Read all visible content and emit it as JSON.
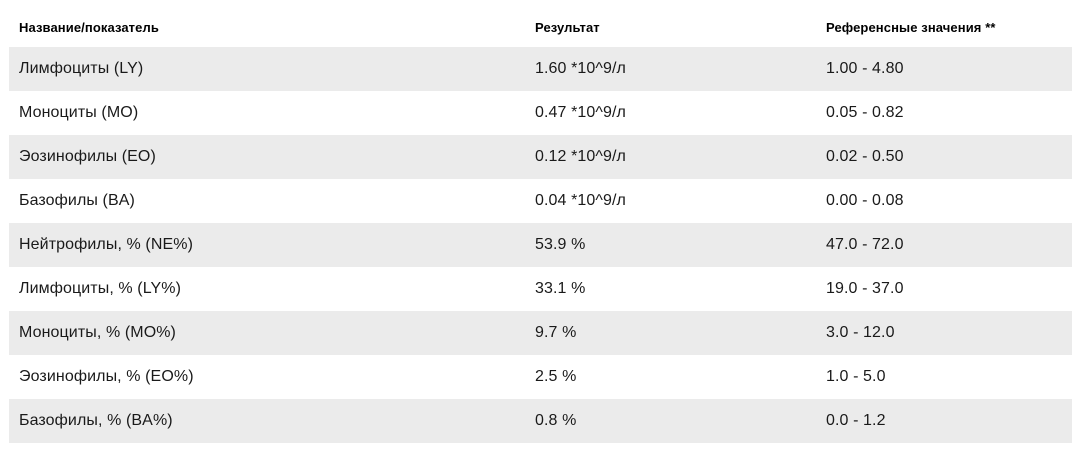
{
  "table": {
    "columns": [
      {
        "id": "name",
        "label": "Название/показатель"
      },
      {
        "id": "result",
        "label": "Результат"
      },
      {
        "id": "reference",
        "label": "Референсные значения **"
      }
    ],
    "rows": [
      {
        "name": "Лимфоциты (LY)",
        "result": "1.60 *10^9/л",
        "reference": "1.00 - 4.80"
      },
      {
        "name": "Моноциты (MO)",
        "result": "0.47 *10^9/л",
        "reference": "0.05 - 0.82"
      },
      {
        "name": "Эозинофилы (EO)",
        "result": "0.12 *10^9/л",
        "reference": "0.02 - 0.50"
      },
      {
        "name": "Базофилы (BA)",
        "result": "0.04 *10^9/л",
        "reference": "0.00 - 0.08"
      },
      {
        "name": "Нейтрофилы, % (NE%)",
        "result": "53.9 %",
        "reference": "47.0 - 72.0"
      },
      {
        "name": "Лимфоциты, % (LY%)",
        "result": "33.1 %",
        "reference": "19.0 - 37.0"
      },
      {
        "name": "Моноциты, % (MO%)",
        "result": "9.7 %",
        "reference": "3.0 - 12.0"
      },
      {
        "name": "Эозинофилы, % (EO%)",
        "result": "2.5 %",
        "reference": "1.0 - 5.0"
      },
      {
        "name": "Базофилы, % (BA%)",
        "result": "0.8 %",
        "reference": "0.0 - 1.2"
      }
    ],
    "colors": {
      "striped_row_bg": "#ebebeb",
      "plain_row_bg": "#ffffff",
      "header_text": "#000000",
      "body_text": "#1a1a1a"
    }
  }
}
